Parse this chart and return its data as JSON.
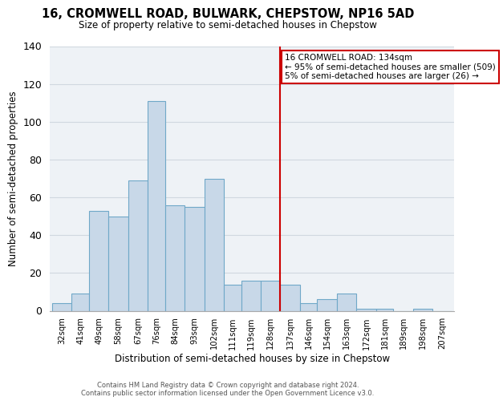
{
  "title": "16, CROMWELL ROAD, BULWARK, CHEPSTOW, NP16 5AD",
  "subtitle": "Size of property relative to semi-detached houses in Chepstow",
  "xlabel": "Distribution of semi-detached houses by size in Chepstow",
  "ylabel": "Number of semi-detached properties",
  "bin_labels": [
    "32sqm",
    "41sqm",
    "49sqm",
    "58sqm",
    "67sqm",
    "76sqm",
    "84sqm",
    "93sqm",
    "102sqm",
    "111sqm",
    "119sqm",
    "128sqm",
    "137sqm",
    "146sqm",
    "154sqm",
    "163sqm",
    "172sqm",
    "181sqm",
    "189sqm",
    "198sqm",
    "207sqm"
  ],
  "bar_heights": [
    4,
    9,
    53,
    50,
    69,
    111,
    56,
    55,
    70,
    14,
    16,
    16,
    14,
    4,
    6,
    9,
    1,
    1,
    0,
    1,
    0
  ],
  "bar_color": "#c8d8e8",
  "bar_edgecolor": "#6fa8c8",
  "vline_color": "#cc0000",
  "ylim": [
    0,
    140
  ],
  "yticks": [
    0,
    20,
    40,
    60,
    80,
    100,
    120,
    140
  ],
  "grid_color": "#d0d8e0",
  "background_color": "#eef2f6",
  "annotation_title": "16 CROMWELL ROAD: 134sqm",
  "annotation_line1": "← 95% of semi-detached houses are smaller (509)",
  "annotation_line2": "5% of semi-detached houses are larger (26) →",
  "footer1": "Contains HM Land Registry data © Crown copyright and database right 2024.",
  "footer2": "Contains public sector information licensed under the Open Government Licence v3.0.",
  "bin_edges": [
    32,
    41,
    49,
    58,
    67,
    76,
    84,
    93,
    102,
    111,
    119,
    128,
    137,
    146,
    154,
    163,
    172,
    181,
    189,
    198,
    207,
    216
  ]
}
